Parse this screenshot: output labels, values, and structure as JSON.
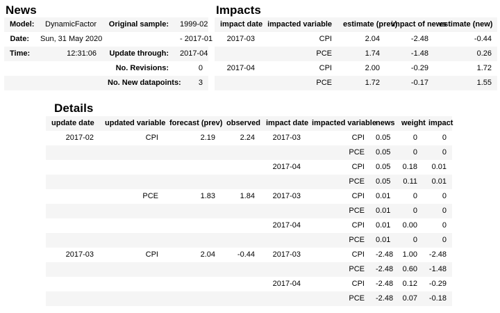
{
  "colors": {
    "background": "#ffffff",
    "text": "#000000",
    "stripe": "#f5f5f5"
  },
  "news": {
    "title": "News",
    "rows": [
      [
        "Model:",
        "DynamicFactor",
        "Original sample:",
        "1999-02"
      ],
      [
        "Date:",
        "Sun, 31 May 2020",
        "",
        "- 2017-01"
      ],
      [
        "Time:",
        "12:31:06",
        "Update through:",
        "2017-04"
      ],
      [
        "",
        "",
        "No. Revisions:",
        "0"
      ],
      [
        "",
        "",
        "No. New datapoints:",
        "3"
      ]
    ]
  },
  "impacts": {
    "title": "Impacts",
    "headers": [
      "impact date",
      "impacted variable",
      "estimate (prev)",
      "impact of news",
      "estimate (new)"
    ],
    "rows": [
      [
        "2017-03",
        "CPI",
        "2.04",
        "-2.48",
        "-0.44"
      ],
      [
        "",
        "PCE",
        "1.74",
        "-1.48",
        "0.26"
      ],
      [
        "2017-04",
        "CPI",
        "2.00",
        "-0.29",
        "1.72"
      ],
      [
        "",
        "PCE",
        "1.72",
        "-0.17",
        "1.55"
      ]
    ]
  },
  "details": {
    "title": "Details",
    "headers": [
      "update date",
      "updated variable",
      "forecast (prev)",
      "observed",
      "impact date",
      "impacted variable",
      "news",
      "weight",
      "impact"
    ],
    "rows": [
      [
        "2017-02",
        "CPI",
        "2.19",
        "2.24",
        "2017-03",
        "CPI",
        "0.05",
        "0",
        "0"
      ],
      [
        "",
        "",
        "",
        "",
        "",
        "PCE",
        "0.05",
        "0",
        "0"
      ],
      [
        "",
        "",
        "",
        "",
        "2017-04",
        "CPI",
        "0.05",
        "0.18",
        "0.01"
      ],
      [
        "",
        "",
        "",
        "",
        "",
        "PCE",
        "0.05",
        "0.11",
        "0.01"
      ],
      [
        "",
        "PCE",
        "1.83",
        "1.84",
        "2017-03",
        "CPI",
        "0.01",
        "0",
        "0"
      ],
      [
        "",
        "",
        "",
        "",
        "",
        "PCE",
        "0.01",
        "0",
        "0"
      ],
      [
        "",
        "",
        "",
        "",
        "2017-04",
        "CPI",
        "0.01",
        "0.00",
        "0"
      ],
      [
        "",
        "",
        "",
        "",
        "",
        "PCE",
        "0.01",
        "0",
        "0"
      ],
      [
        "2017-03",
        "CPI",
        "2.04",
        "-0.44",
        "2017-03",
        "CPI",
        "-2.48",
        "1.00",
        "-2.48"
      ],
      [
        "",
        "",
        "",
        "",
        "",
        "PCE",
        "-2.48",
        "0.60",
        "-1.48"
      ],
      [
        "",
        "",
        "",
        "",
        "2017-04",
        "CPI",
        "-2.48",
        "0.12",
        "-0.29"
      ],
      [
        "",
        "",
        "",
        "",
        "",
        "PCE",
        "-2.48",
        "0.07",
        "-0.18"
      ]
    ]
  }
}
